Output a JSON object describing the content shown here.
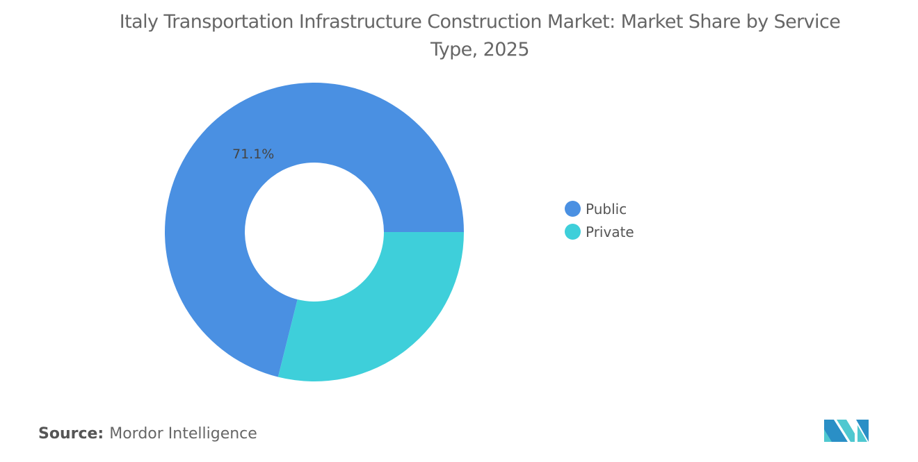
{
  "chart_data": {
    "type": "pie",
    "variant": "donut",
    "title": "Italy Transportation Infrastructure Construction Market: Market Share by Service Type, 2025",
    "categories": [
      "Public",
      "Private"
    ],
    "values": [
      71.1,
      28.9
    ],
    "unit": "%",
    "colors": [
      "#4a90e2",
      "#3ecfda"
    ],
    "data_labels": [
      "71.1%",
      ""
    ],
    "legend_position": "right"
  },
  "source": {
    "label": "Source:",
    "text": "Mordor Intelligence"
  },
  "logo_colors": [
    "#2a8fc6",
    "#4fc8d0"
  ]
}
